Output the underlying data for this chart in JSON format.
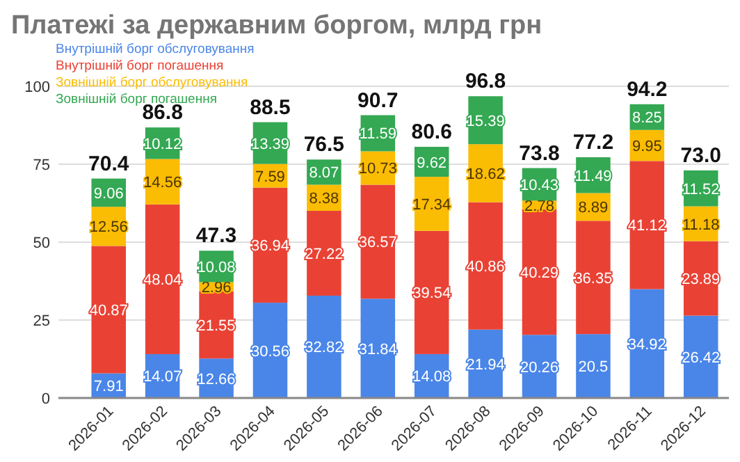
{
  "chart_data": {
    "type": "bar",
    "title": "Платежі за державним боргом, млрд грн",
    "stacked": true,
    "categories": [
      "2026-01",
      "2026-02",
      "2026-03",
      "2026-04",
      "2026-05",
      "2026-06",
      "2026-07",
      "2026-08",
      "2026-09",
      "2026-10",
      "2026-11",
      "2026-12"
    ],
    "series": [
      {
        "name": "Внутрішній борг обслуговування",
        "color": "#4a86e8",
        "values": [
          7.91,
          14.07,
          12.66,
          30.56,
          32.82,
          31.84,
          14.08,
          21.94,
          20.26,
          20.5,
          34.92,
          26.42
        ]
      },
      {
        "name": "Внутрішній борг погашення",
        "color": "#e94235",
        "values": [
          40.87,
          48.04,
          21.55,
          36.94,
          27.22,
          36.57,
          39.54,
          40.86,
          40.29,
          36.35,
          41.12,
          23.89
        ]
      },
      {
        "name": "Зовнішній борг обслуговування",
        "color": "#fbbc04",
        "values": [
          12.56,
          14.56,
          2.96,
          7.59,
          8.38,
          10.73,
          17.34,
          18.62,
          2.78,
          8.89,
          9.95,
          11.18
        ]
      },
      {
        "name": "Зовнішній борг погашення",
        "color": "#34a853",
        "values": [
          9.06,
          10.12,
          10.08,
          13.39,
          8.07,
          11.59,
          9.62,
          15.39,
          10.43,
          11.49,
          8.25,
          11.52
        ]
      }
    ],
    "totals": [
      "70.4",
      "86.8",
      "47.3",
      "88.5",
      "76.5",
      "90.7",
      "80.6",
      "96.8",
      "73.8",
      "77.2",
      "94.2",
      "73.0"
    ],
    "data_labels": true,
    "ylim": [
      0,
      100
    ],
    "yticks": [
      0,
      25,
      50,
      75,
      100
    ],
    "grid": "y",
    "legend": "top left"
  }
}
